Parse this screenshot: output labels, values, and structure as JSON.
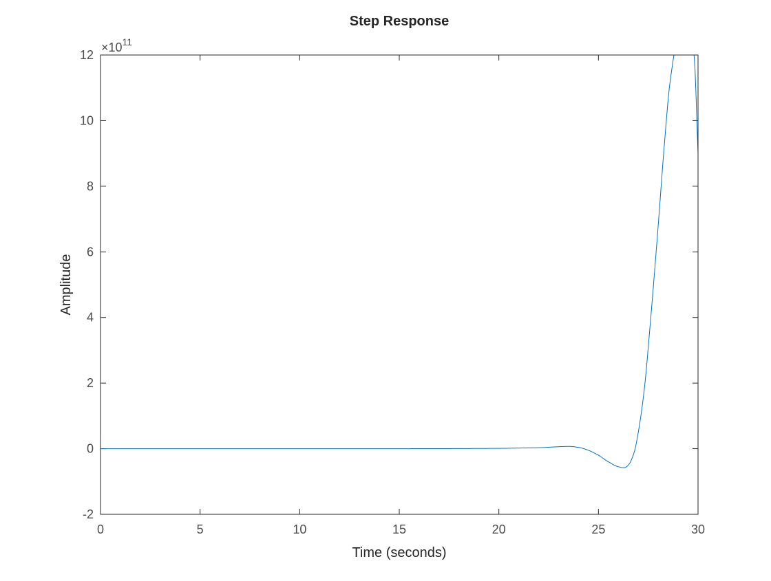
{
  "chart_data": {
    "type": "line",
    "title": "Step Response",
    "xlabel": "Time (seconds)",
    "ylabel": "Amplitude",
    "exponent_label": "×10",
    "exponent_power": "11",
    "xlim": [
      0,
      30
    ],
    "ylim": [
      -2,
      12
    ],
    "y_scale_note": "values in units of 1e11",
    "x_ticks": [
      0,
      5,
      10,
      15,
      20,
      25,
      30
    ],
    "y_ticks": [
      -2,
      0,
      2,
      4,
      6,
      8,
      10,
      12
    ],
    "grid": false,
    "line_color": "#0072BD",
    "series": [
      {
        "x": [
          0,
          5,
          10,
          15,
          20,
          21,
          22,
          23,
          23.5,
          24,
          24.5,
          25,
          25.5,
          26,
          26.3,
          26.5,
          26.8,
          27,
          27.3,
          27.6,
          28,
          28.3,
          28.6,
          29,
          29.2,
          29.35,
          29.5,
          29.65,
          29.8,
          30
        ],
        "y": [
          0,
          0,
          0,
          0,
          0.01,
          0.02,
          0.03,
          0.06,
          0.07,
          0.04,
          -0.05,
          -0.2,
          -0.4,
          -0.55,
          -0.58,
          -0.5,
          -0.1,
          0.5,
          1.8,
          3.8,
          6.8,
          9.2,
          11.2,
          12.5,
          12.6,
          12.2,
          12.3,
          12.4,
          12.0,
          9.0
        ]
      }
    ]
  }
}
